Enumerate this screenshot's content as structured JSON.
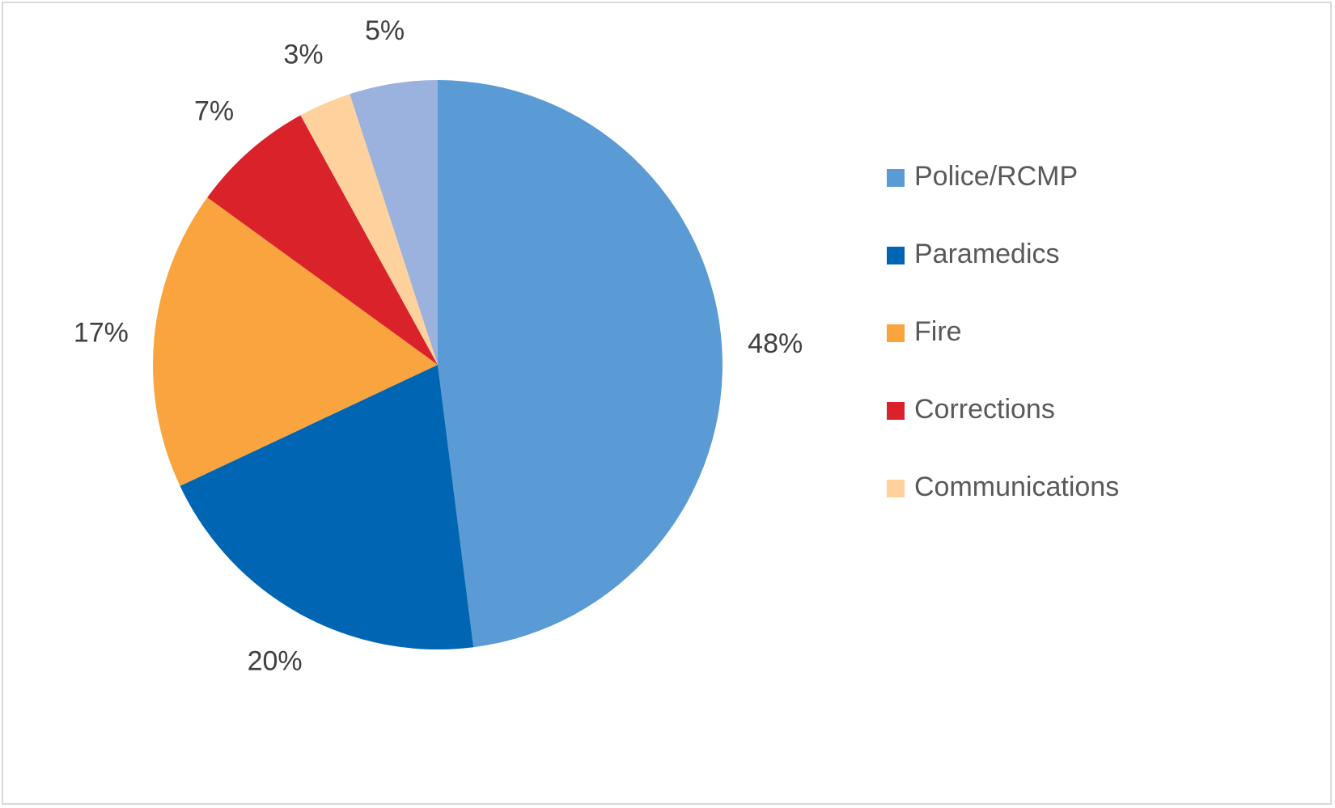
{
  "chart_data": {
    "type": "pie",
    "categories": [
      "Police/RCMP",
      "Paramedics",
      "Fire",
      "Corrections",
      "Communications",
      ""
    ],
    "values": [
      48,
      20,
      17,
      7,
      3,
      5
    ],
    "data_labels": [
      "48%",
      "20%",
      "17%",
      "7%",
      "3%",
      "5%"
    ],
    "colors": [
      "#5b9bd5",
      "#0066b3",
      "#f9a43e",
      "#d9222a",
      "#ffd29d",
      "#9ab2dd"
    ],
    "legend_position": "right",
    "title": ""
  }
}
